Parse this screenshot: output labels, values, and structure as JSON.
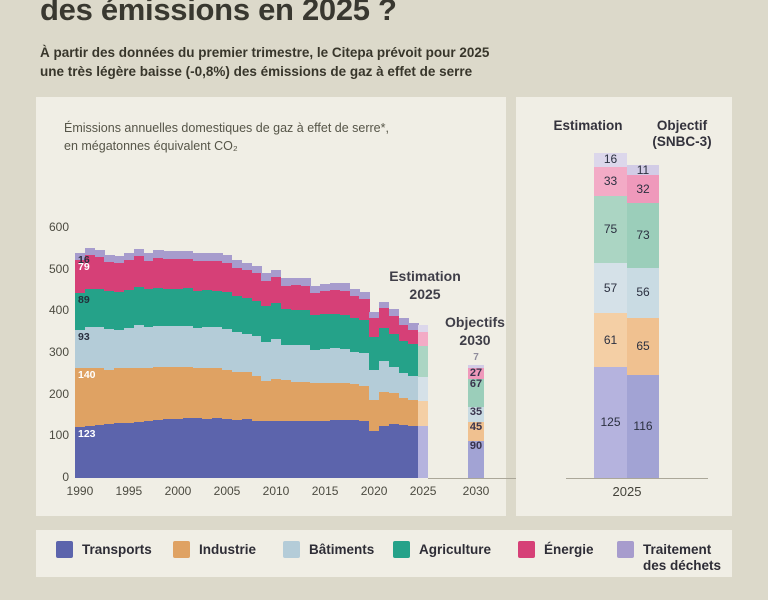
{
  "page": {
    "title": "des émissions en 2025 ?",
    "subtitle": "À partir des données du premier trimestre, le Citepa prévoit pour 2025\nune très légère baisse (-0,8%) des émissions de gaz à effet de serre",
    "background": "#dcd9ca",
    "card_background": "#f0eee5"
  },
  "chart_data": [
    {
      "id": "main_stacked_area",
      "type": "area",
      "note": "Émissions annuelles domestiques de gaz à effet de serre*,\nen mégatonnes équivalent CO₂",
      "x_start": 1990,
      "x_end": 2025,
      "ylim": [
        0,
        600
      ],
      "yticks": [
        0,
        100,
        200,
        300,
        400,
        500,
        600
      ],
      "xticks": [
        1990,
        1995,
        2000,
        2005,
        2010,
        2015,
        2020,
        2025
      ],
      "grid": false,
      "legend_position": "bottom",
      "series": [
        {
          "name": "Transports",
          "color": "#5c64ac",
          "pastel": "#b5b3de",
          "pastel2": "#a2a3d4",
          "start_label_color": "#ffffff",
          "values": [
            123,
            126,
            128,
            130,
            132,
            133,
            135,
            136,
            139,
            141,
            141,
            143,
            143,
            142,
            143,
            141,
            140,
            141,
            138,
            136,
            136,
            137,
            136,
            136,
            137,
            138,
            139,
            140,
            139,
            138,
            113,
            126,
            129,
            127,
            126,
            125
          ]
        },
        {
          "name": "Industrie",
          "color": "#dfa263",
          "pastel": "#f4cfa5",
          "pastel2": "#f0c190",
          "start_label_color": "#ffffff",
          "values": [
            140,
            138,
            137,
            130,
            131,
            131,
            130,
            129,
            128,
            126,
            125,
            123,
            121,
            121,
            120,
            118,
            115,
            113,
            108,
            97,
            101,
            98,
            95,
            94,
            91,
            90,
            88,
            88,
            86,
            84,
            75,
            80,
            74,
            66,
            62,
            61
          ]
        },
        {
          "name": "Bâtiments",
          "color": "#b4ccd8",
          "pastel": "#d5e1e8",
          "pastel2": "#c9dbe3",
          "start_label_color": "#2b3040",
          "values": [
            93,
            99,
            98,
            98,
            93,
            97,
            103,
            98,
            99,
            97,
            98,
            100,
            97,
            99,
            99,
            99,
            95,
            92,
            94,
            93,
            97,
            85,
            88,
            90,
            80,
            82,
            84,
            82,
            78,
            77,
            71,
            75,
            64,
            59,
            57,
            57
          ]
        },
        {
          "name": "Agriculture",
          "color": "#25a289",
          "pastel": "#abd5c3",
          "pastel2": "#9bceba",
          "start_label_color": "#222f3a",
          "values": [
            89,
            90,
            90,
            90,
            90,
            90,
            90,
            90,
            90,
            90,
            90,
            89,
            89,
            89,
            88,
            88,
            87,
            87,
            86,
            86,
            85,
            85,
            85,
            84,
            84,
            84,
            83,
            82,
            82,
            81,
            80,
            80,
            78,
            77,
            76,
            75
          ]
        },
        {
          "name": "Énergie",
          "color": "#d64077",
          "pastel": "#f3abc6",
          "pastel2": "#ef99bb",
          "start_label_color": "#ffffff",
          "values": [
            79,
            83,
            78,
            70,
            70,
            72,
            74,
            68,
            73,
            71,
            71,
            70,
            70,
            71,
            70,
            71,
            67,
            66,
            65,
            62,
            63,
            57,
            59,
            58,
            52,
            55,
            57,
            58,
            52,
            50,
            44,
            46,
            45,
            38,
            34,
            33
          ]
        },
        {
          "name": "Traitement des déchets",
          "color": "#a79ccd",
          "pastel": "#dcd7eb",
          "pastel2": "#d2cce6",
          "start_label_color": "#2b3040",
          "values": [
            16,
            16,
            17,
            17,
            17,
            18,
            18,
            18,
            18,
            19,
            19,
            19,
            19,
            19,
            19,
            19,
            19,
            18,
            18,
            18,
            18,
            18,
            17,
            17,
            17,
            17,
            17,
            17,
            16,
            16,
            16,
            16,
            16,
            16,
            16,
            16
          ]
        }
      ],
      "annotation_estimation": "Estimation\n2025",
      "annotation_objectifs": "Objectifs\n2030",
      "objectifs_2030": {
        "year_label": "2030",
        "values": [
          90,
          45,
          35,
          67,
          27,
          7
        ]
      }
    },
    {
      "id": "comparison_2025",
      "type": "stacked-bar",
      "columns": [
        {
          "label": "Estimation",
          "values": [
            125,
            61,
            57,
            75,
            33,
            16
          ]
        },
        {
          "label": "Objectif\n(SNBC-3)",
          "values": [
            116,
            65,
            56,
            73,
            32,
            11
          ]
        }
      ],
      "series_order": [
        "Transports",
        "Industrie",
        "Bâtiments",
        "Agriculture",
        "Énergie",
        "Traitement des déchets"
      ],
      "xlabel": "2025"
    }
  ],
  "legend": {
    "items": [
      {
        "label": "Transports",
        "color": "#5c64ac"
      },
      {
        "label": "Industrie",
        "color": "#dfa263"
      },
      {
        "label": "Bâtiments",
        "color": "#b4ccd8"
      },
      {
        "label": "Agriculture",
        "color": "#25a289"
      },
      {
        "label": "Énergie",
        "color": "#d64077"
      },
      {
        "label": "Traitement des déchets",
        "color": "#a79ccd"
      }
    ]
  }
}
